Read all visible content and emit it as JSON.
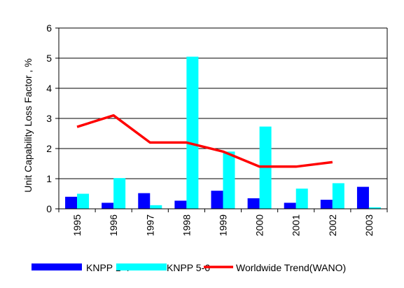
{
  "chart_data": {
    "type": "bar",
    "title": "",
    "xlabel": "",
    "ylabel": "Unit Capability Loss Factor , %",
    "ylim": [
      0,
      6
    ],
    "yticks": [
      "0",
      "1",
      "2",
      "3",
      "4",
      "5",
      "6"
    ],
    "grid": true,
    "legend_position": "bottom",
    "categories": [
      "1995",
      "1996",
      "1997",
      "1998",
      "1999",
      "2000",
      "2001",
      "2002",
      "2003"
    ],
    "series": [
      {
        "name": "KNPP 1-4",
        "type": "bar",
        "color": "#0000ff",
        "values": [
          0.4,
          0.2,
          0.52,
          0.27,
          0.6,
          0.35,
          0.2,
          0.3,
          0.73
        ]
      },
      {
        "name": "KNPP 5-6",
        "type": "bar",
        "color": "#00ffff",
        "values": [
          0.5,
          1.02,
          0.12,
          5.05,
          1.9,
          2.73,
          0.67,
          0.85,
          0.05
        ]
      },
      {
        "name": "Worldwide Trend(WANO)",
        "type": "line",
        "color": "#ff0000",
        "values": [
          2.72,
          3.1,
          2.2,
          2.2,
          1.9,
          1.4,
          1.4,
          1.55,
          null
        ]
      }
    ]
  }
}
